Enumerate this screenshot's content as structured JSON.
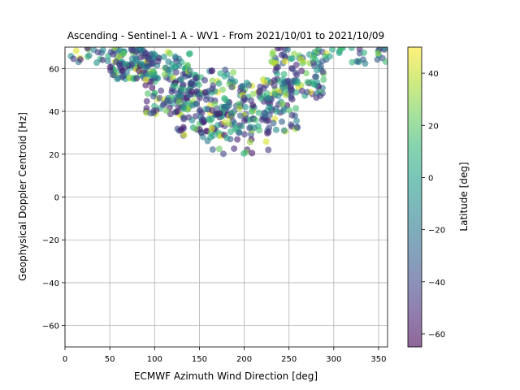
{
  "chart_data": {
    "type": "scatter",
    "title": "Ascending - Sentinel-1 A - WV1 - From 2021/10/01 to 2021/10/09",
    "xlabel": "ECMWF Azimuth Wind Direction [deg]",
    "ylabel": "Geophysical Doppler Centroid [Hz]",
    "xlim": [
      0,
      360
    ],
    "ylim": [
      -70,
      70
    ],
    "xticks": [
      "0",
      "50",
      "100",
      "150",
      "200",
      "250",
      "300",
      "350"
    ],
    "yticks": [
      "60",
      "40",
      "20",
      "0",
      "−20",
      "−40",
      "−60"
    ],
    "xtick_values": [
      0,
      50,
      100,
      150,
      200,
      250,
      300,
      350
    ],
    "ytick_values": [
      60,
      40,
      20,
      0,
      -20,
      -40,
      -60
    ],
    "grid": true,
    "colorbar": {
      "label": "Latitude [deg]",
      "range": [
        -65,
        50
      ],
      "ticks": [
        "40",
        "20",
        "0",
        "−20",
        "−40",
        "−60"
      ],
      "tick_values": [
        40,
        20,
        0,
        -20,
        -40,
        -60
      ],
      "colormap": "viridis"
    },
    "point_alpha": 0.6,
    "point_count": 720,
    "points_description": "Points span roughly x 0-360 deg and y 20-70 Hz, forming a U-shaped band clipped at the top (y=70); lowest values near x 150-230 (y ~20-30), denser cluster at x 50-280 and y 35-70. Colors range over latitudes -65 to 50 deg.",
    "clusters": [
      {
        "x_range": [
          0,
          60
        ],
        "y_range": [
          62,
          70
        ],
        "count": 20
      },
      {
        "x_range": [
          50,
          100
        ],
        "y_range": [
          55,
          70
        ],
        "count": 110
      },
      {
        "x_range": [
          90,
          140
        ],
        "y_range": [
          38,
          68
        ],
        "count": 120
      },
      {
        "x_range": [
          120,
          190
        ],
        "y_range": [
          28,
          60
        ],
        "count": 150
      },
      {
        "x_range": [
          150,
          230
        ],
        "y_range": [
          20,
          40
        ],
        "count": 40
      },
      {
        "x_range": [
          190,
          260
        ],
        "y_range": [
          30,
          55
        ],
        "count": 130
      },
      {
        "x_range": [
          230,
          290
        ],
        "y_range": [
          45,
          70
        ],
        "count": 100
      },
      {
        "x_range": [
          290,
          360
        ],
        "y_range": [
          62,
          70
        ],
        "count": 30
      },
      {
        "x_range": [
          140,
          180
        ],
        "y_range": [
          42,
          56
        ],
        "count": 20
      }
    ]
  },
  "colors": {
    "grid": "#b0b0b0",
    "viridis": [
      "#440154",
      "#482878",
      "#3e4989",
      "#31688e",
      "#26828e",
      "#1f9e89",
      "#35b779",
      "#6ece58",
      "#b5de2b",
      "#fde725"
    ]
  }
}
